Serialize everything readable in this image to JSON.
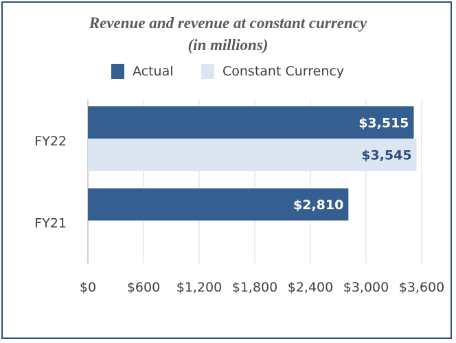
{
  "chart_data": {
    "type": "bar",
    "orientation": "horizontal",
    "title_lines": [
      "Revenue and revenue at constant currency",
      "(in millions)"
    ],
    "categories": [
      "FY22",
      "FY21"
    ],
    "series": [
      {
        "name": "Actual",
        "values": [
          3515,
          2810
        ],
        "labels": [
          "$3,515",
          "$2,810"
        ],
        "color": "#355e91",
        "label_color": "#ffffff"
      },
      {
        "name": "Constant Currency",
        "values": [
          3545,
          null
        ],
        "labels": [
          "$3,545",
          ""
        ],
        "color": "#dce6f2",
        "label_color": "#2f4f7f"
      }
    ],
    "x_ticks": [
      "$0",
      "$600",
      "$1,200",
      "$1,800",
      "$2,400",
      "$3,000",
      "$3,600"
    ],
    "xlim": [
      0,
      3600
    ],
    "x_step": 600,
    "grid": "vertical",
    "legend_position": "top"
  }
}
